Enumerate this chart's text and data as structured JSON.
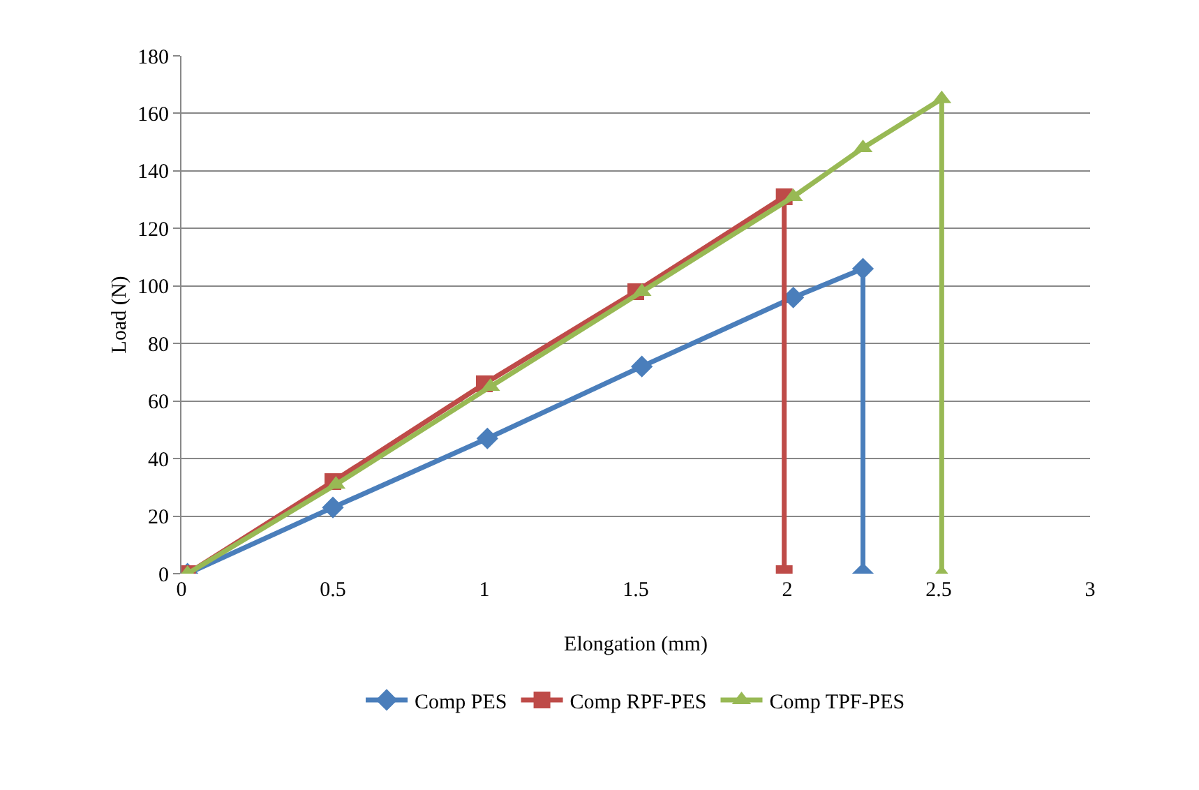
{
  "chart_data": {
    "type": "line",
    "xlabel": "Elongation (mm)",
    "ylabel": "Load (N)",
    "xlim": [
      0,
      3
    ],
    "xticks": [
      0,
      0.5,
      1,
      1.5,
      2,
      2.5,
      3
    ],
    "ylim": [
      0,
      180
    ],
    "yticks": [
      0,
      20,
      40,
      60,
      80,
      100,
      120,
      140,
      160,
      180
    ],
    "grid": "y",
    "legend": "bottom",
    "series": [
      {
        "name": "Comp PES",
        "color": "#4a7ebb",
        "marker": "diamond",
        "x": [
          0.02,
          0.5,
          1.01,
          1.52,
          2.02,
          2.25,
          2.25
        ],
        "values": [
          0,
          23,
          47,
          72,
          96,
          106,
          0
        ]
      },
      {
        "name": "Comp RPF-PES",
        "color": "#be4b48",
        "marker": "square",
        "x": [
          0.02,
          0.5,
          1.0,
          1.5,
          1.99,
          1.99
        ],
        "values": [
          0,
          32,
          66,
          98,
          131,
          0
        ]
      },
      {
        "name": "Comp TPF-PES",
        "color": "#98b954",
        "marker": "triangle",
        "x": [
          0.02,
          0.51,
          1.02,
          1.52,
          2.02,
          2.25,
          2.51,
          2.51
        ],
        "values": [
          0,
          31,
          65,
          98,
          131,
          148,
          165,
          0
        ]
      }
    ]
  }
}
